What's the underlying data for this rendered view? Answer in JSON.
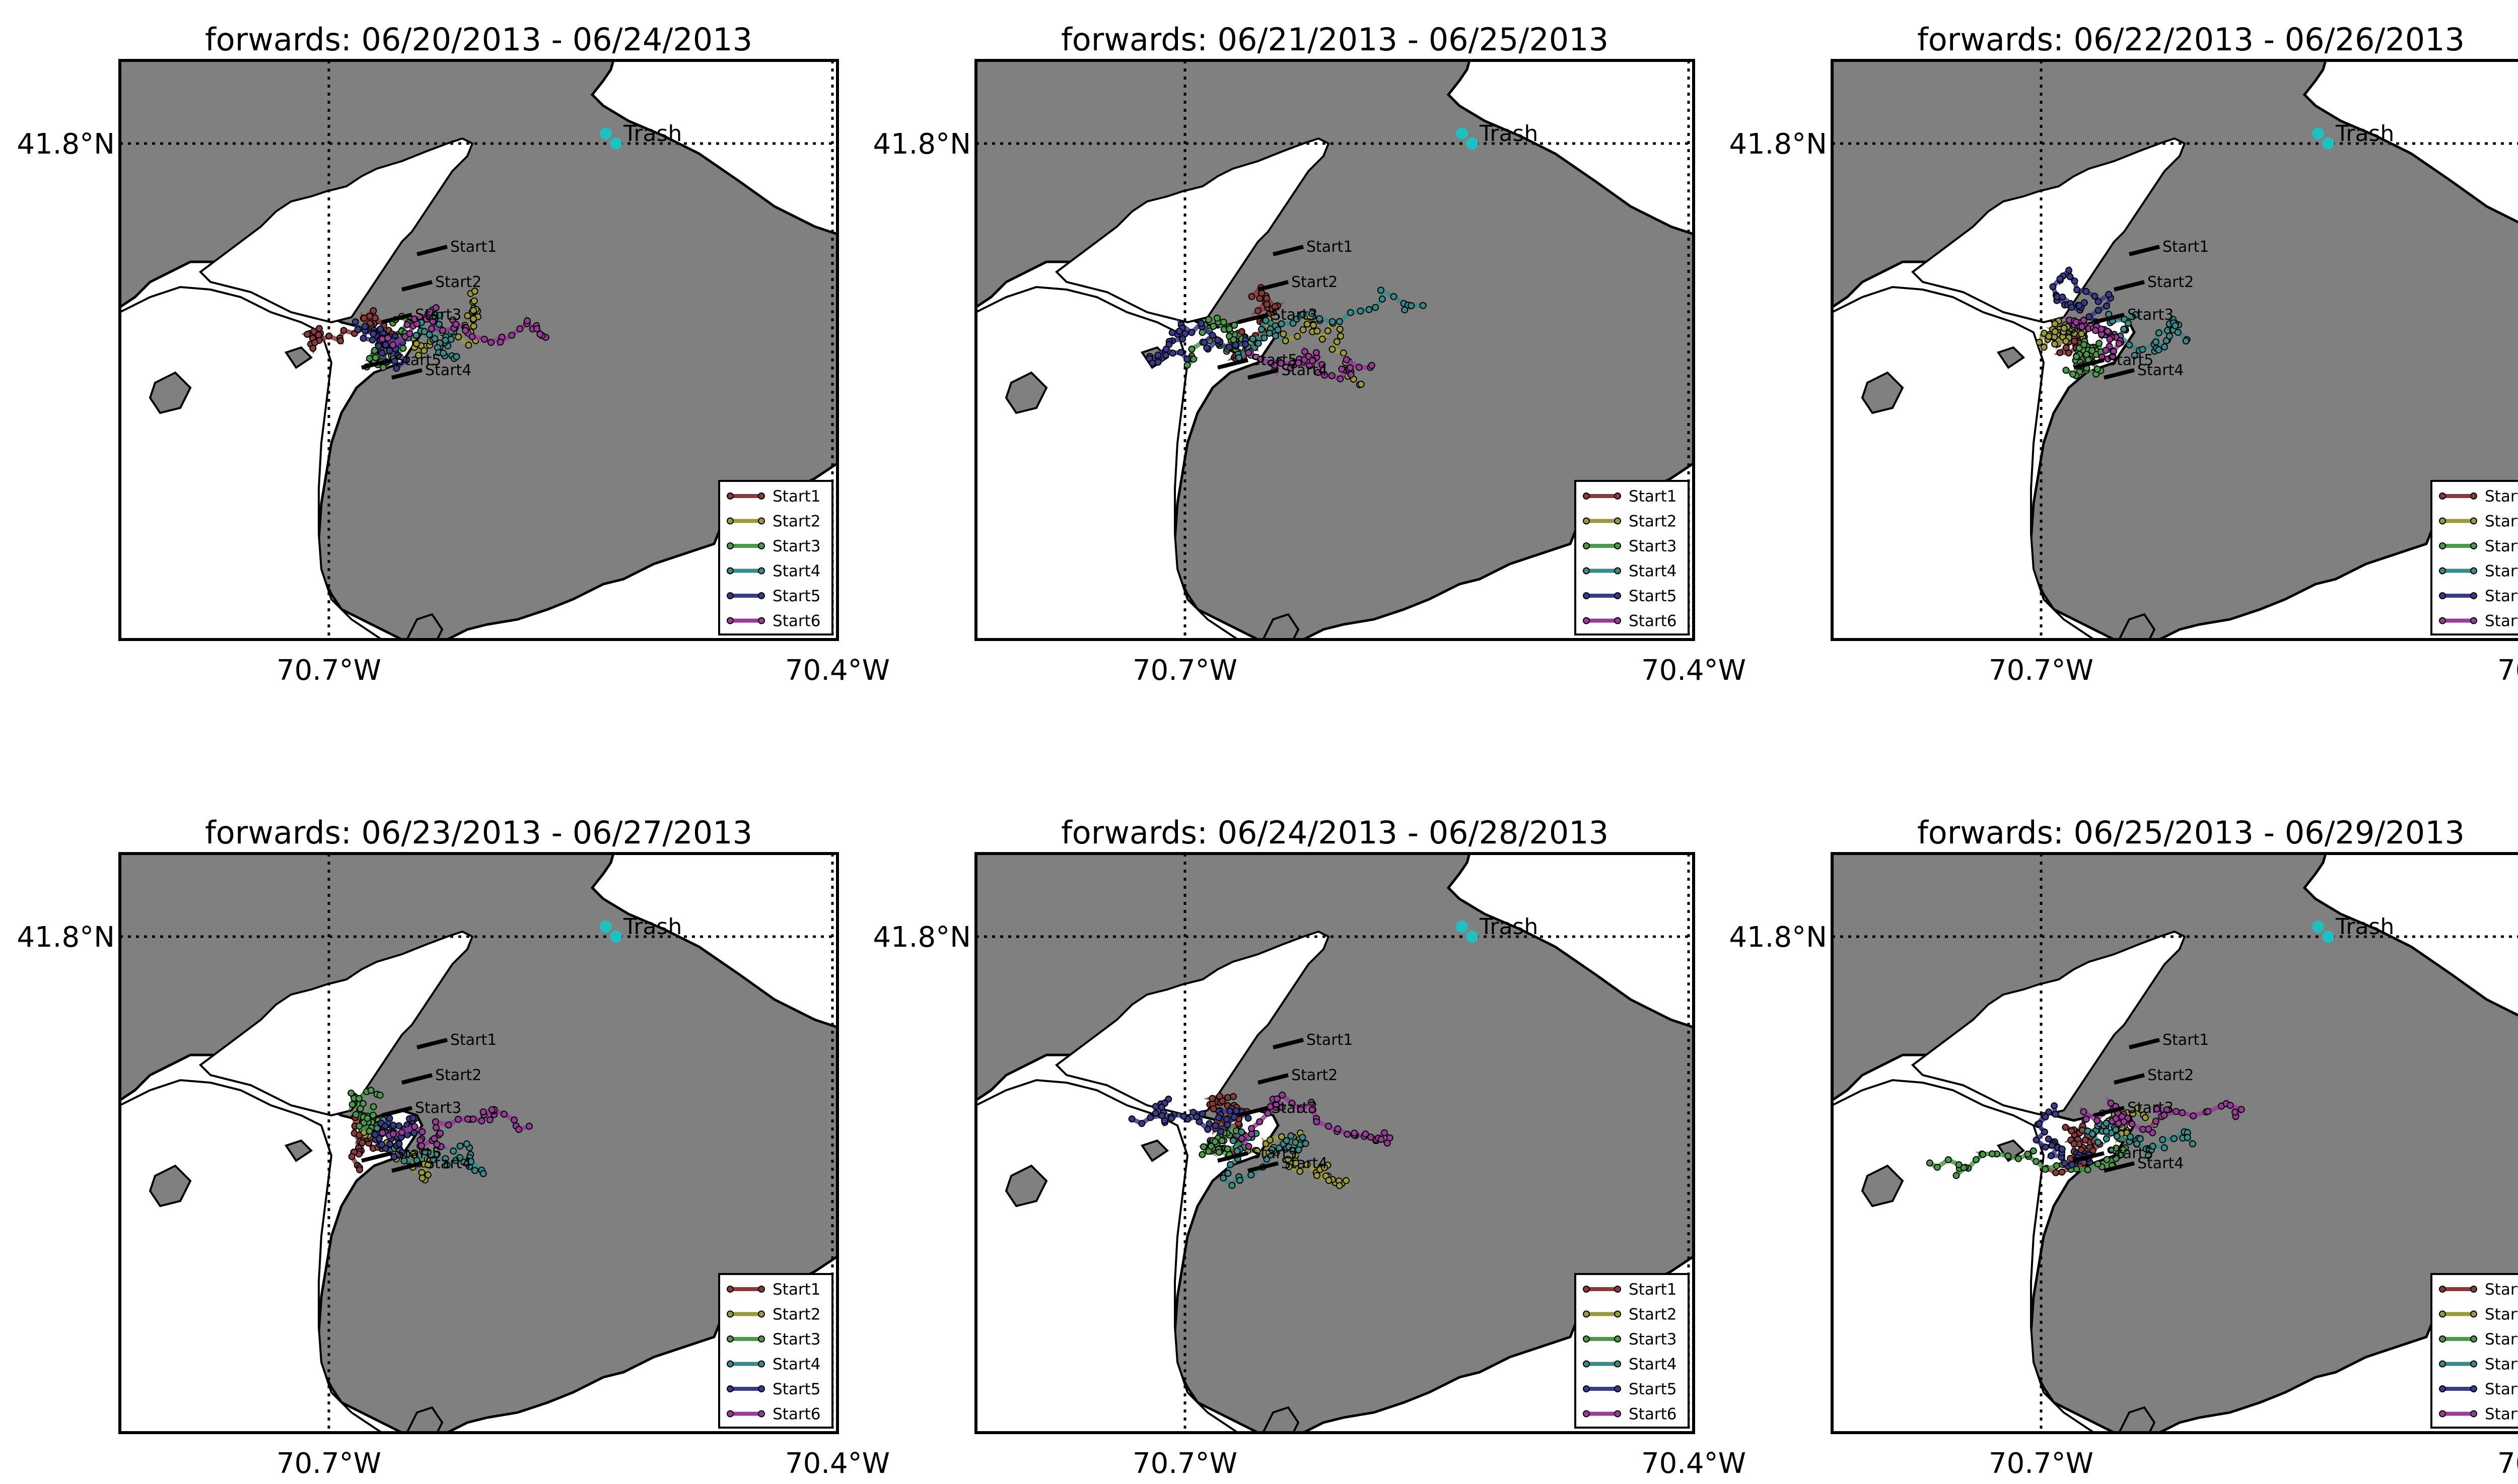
{
  "figure": {
    "layout": "2 rows x 3 columns of map panels",
    "land_color": "#808080",
    "water_color": "#ffffff",
    "trash_color": "#20c0c0",
    "series_colors": {
      "Start1": "#8b3a3a",
      "Start2": "#9a9a3c",
      "Start3": "#4a9a4a",
      "Start4": "#3a8a8a",
      "Start5": "#3a3a8a",
      "Start6": "#9a3a9a"
    },
    "lat_tick": "41.8°N",
    "lon_ticks": [
      "70.7°W",
      "70.4°W"
    ],
    "trash_label": "Trash",
    "start_labels": [
      "Start1",
      "Start2",
      "Start3",
      "Start4",
      "Start5"
    ],
    "legend_entries": [
      "Start1",
      "Start2",
      "Start3",
      "Start4",
      "Start5",
      "Start6"
    ]
  },
  "panels": [
    {
      "title": "forwards: 06/20/2013 - 06/24/2013"
    },
    {
      "title": "forwards: 06/21/2013 - 06/25/2013"
    },
    {
      "title": "forwards: 06/22/2013 - 06/26/2013"
    },
    {
      "title": "forwards: 06/23/2013 - 06/27/2013"
    },
    {
      "title": "forwards: 06/24/2013 - 06/28/2013"
    },
    {
      "title": "forwards: 06/25/2013 - 06/29/2013"
    }
  ]
}
